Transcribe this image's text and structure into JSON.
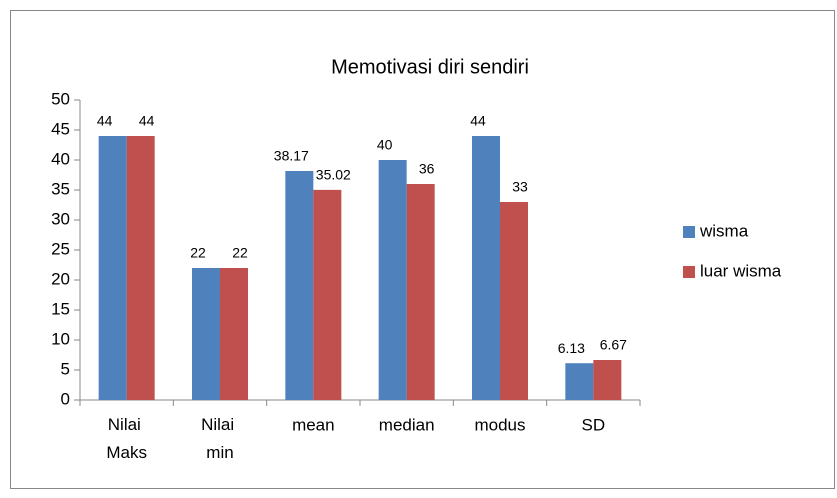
{
  "chart_data": {
    "type": "bar",
    "title": "Memotivasi diri sendiri",
    "categories": [
      "Nilai Maks",
      "Nilai min",
      "mean",
      "median",
      "modus",
      "SD"
    ],
    "series": [
      {
        "name": "wisma",
        "color": "#4f81bd",
        "values": [
          44,
          22,
          38.17,
          40,
          44,
          6.13
        ]
      },
      {
        "name": "luar wisma",
        "color": "#c0504d",
        "values": [
          44,
          22,
          35.02,
          36,
          33,
          6.67
        ]
      }
    ],
    "ylim": [
      0,
      50
    ],
    "yticks": [
      0,
      5,
      10,
      15,
      20,
      25,
      30,
      35,
      40,
      45,
      50
    ],
    "grid": false,
    "legend": "right"
  }
}
